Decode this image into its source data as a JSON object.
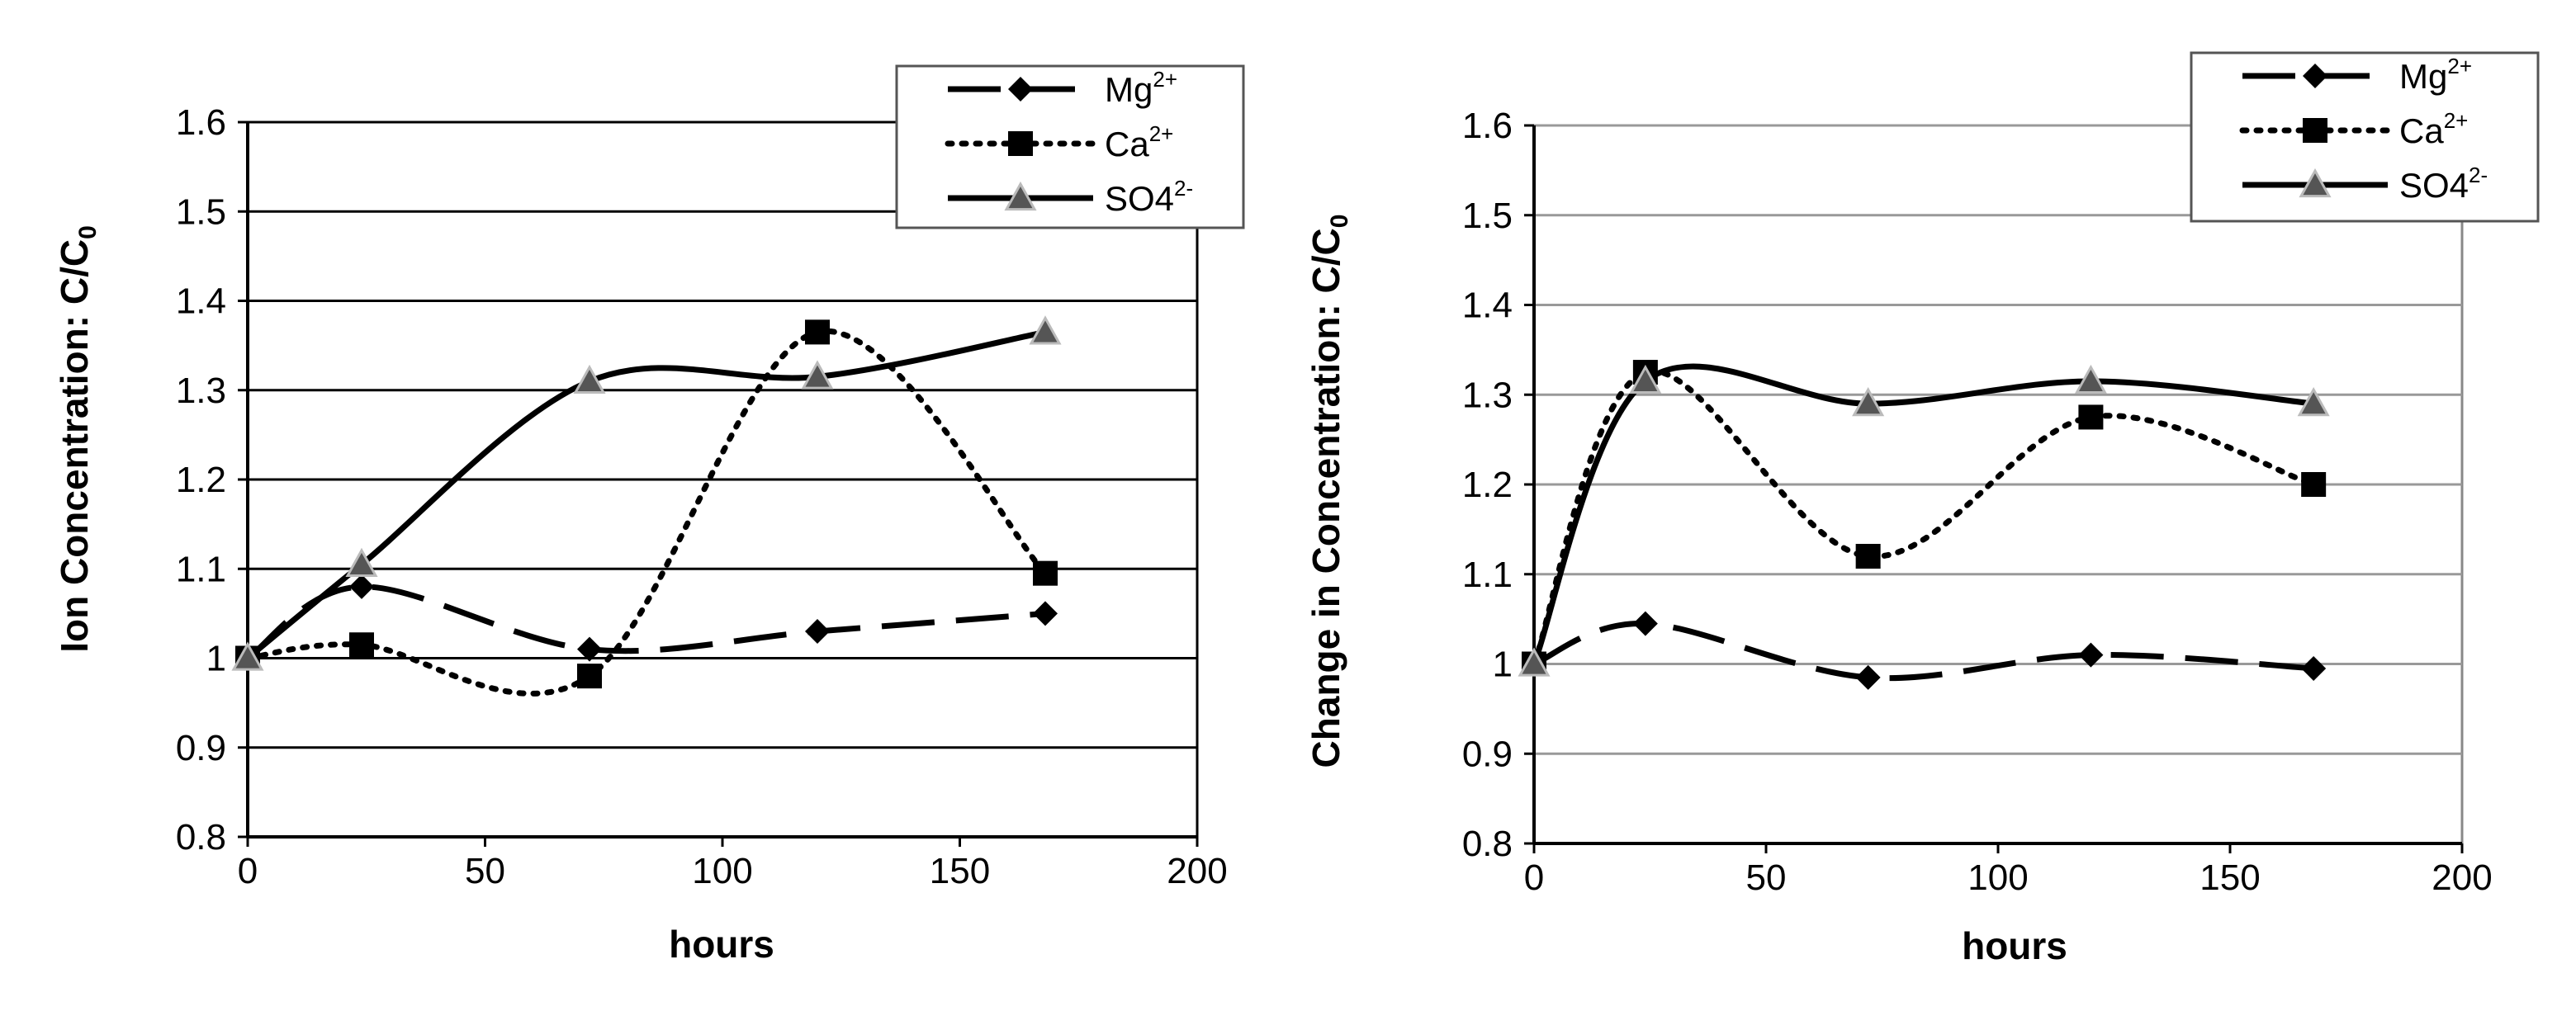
{
  "chart_data": [
    {
      "type": "line",
      "title": "",
      "xlabel": "hours",
      "ylabel": "Ion Concentration: C/C",
      "ylabel_sub": "0",
      "xlim": [
        0,
        200
      ],
      "ylim": [
        0.8,
        1.6
      ],
      "xticks": [
        "0",
        "50",
        "100",
        "150",
        "200"
      ],
      "yticks": [
        "0.8",
        "0.9",
        "1",
        "1.1",
        "1.2",
        "1.3",
        "1.4",
        "1.5",
        "1.6"
      ],
      "grid": "horizontal",
      "legend_position": "top-right",
      "x": [
        0,
        24,
        72,
        120,
        168
      ],
      "series": [
        {
          "name": "Mg",
          "sup": "2+",
          "marker": "diamond",
          "dash": "long-dash",
          "color": "#000000",
          "values": [
            1.0,
            1.08,
            1.01,
            1.03,
            1.05
          ]
        },
        {
          "name": "Ca",
          "sup": "2+",
          "marker": "square",
          "dash": "dotted",
          "color": "#000000",
          "values": [
            1.0,
            1.015,
            0.98,
            1.365,
            1.095
          ]
        },
        {
          "name": "SO4",
          "sup": "2-",
          "marker": "triangle",
          "dash": "solid",
          "color": "#000000",
          "values": [
            1.0,
            1.105,
            1.31,
            1.315,
            1.365
          ]
        }
      ]
    },
    {
      "type": "line",
      "title": "",
      "xlabel": "hours",
      "ylabel": "Change in Concentration: C/C",
      "ylabel_sub": "0",
      "xlim": [
        0,
        200
      ],
      "ylim": [
        0.8,
        1.6
      ],
      "xticks": [
        "0",
        "50",
        "100",
        "150",
        "200"
      ],
      "yticks": [
        "0.8",
        "0.9",
        "1",
        "1.1",
        "1.2",
        "1.3",
        "1.4",
        "1.5",
        "1.6"
      ],
      "grid": "horizontal",
      "legend_position": "top-right",
      "x": [
        0,
        24,
        72,
        120,
        168
      ],
      "series": [
        {
          "name": "Mg",
          "sup": "2+",
          "marker": "diamond",
          "dash": "long-dash",
          "color": "#000000",
          "values": [
            1.0,
            1.045,
            0.985,
            1.01,
            0.995
          ]
        },
        {
          "name": "Ca",
          "sup": "2+",
          "marker": "square",
          "dash": "dotted",
          "color": "#000000",
          "values": [
            1.0,
            1.325,
            1.12,
            1.275,
            1.2
          ]
        },
        {
          "name": "SO4",
          "sup": "2-",
          "marker": "triangle",
          "dash": "solid",
          "color": "#000000",
          "values": [
            1.0,
            1.315,
            1.29,
            1.315,
            1.29
          ]
        }
      ]
    }
  ]
}
